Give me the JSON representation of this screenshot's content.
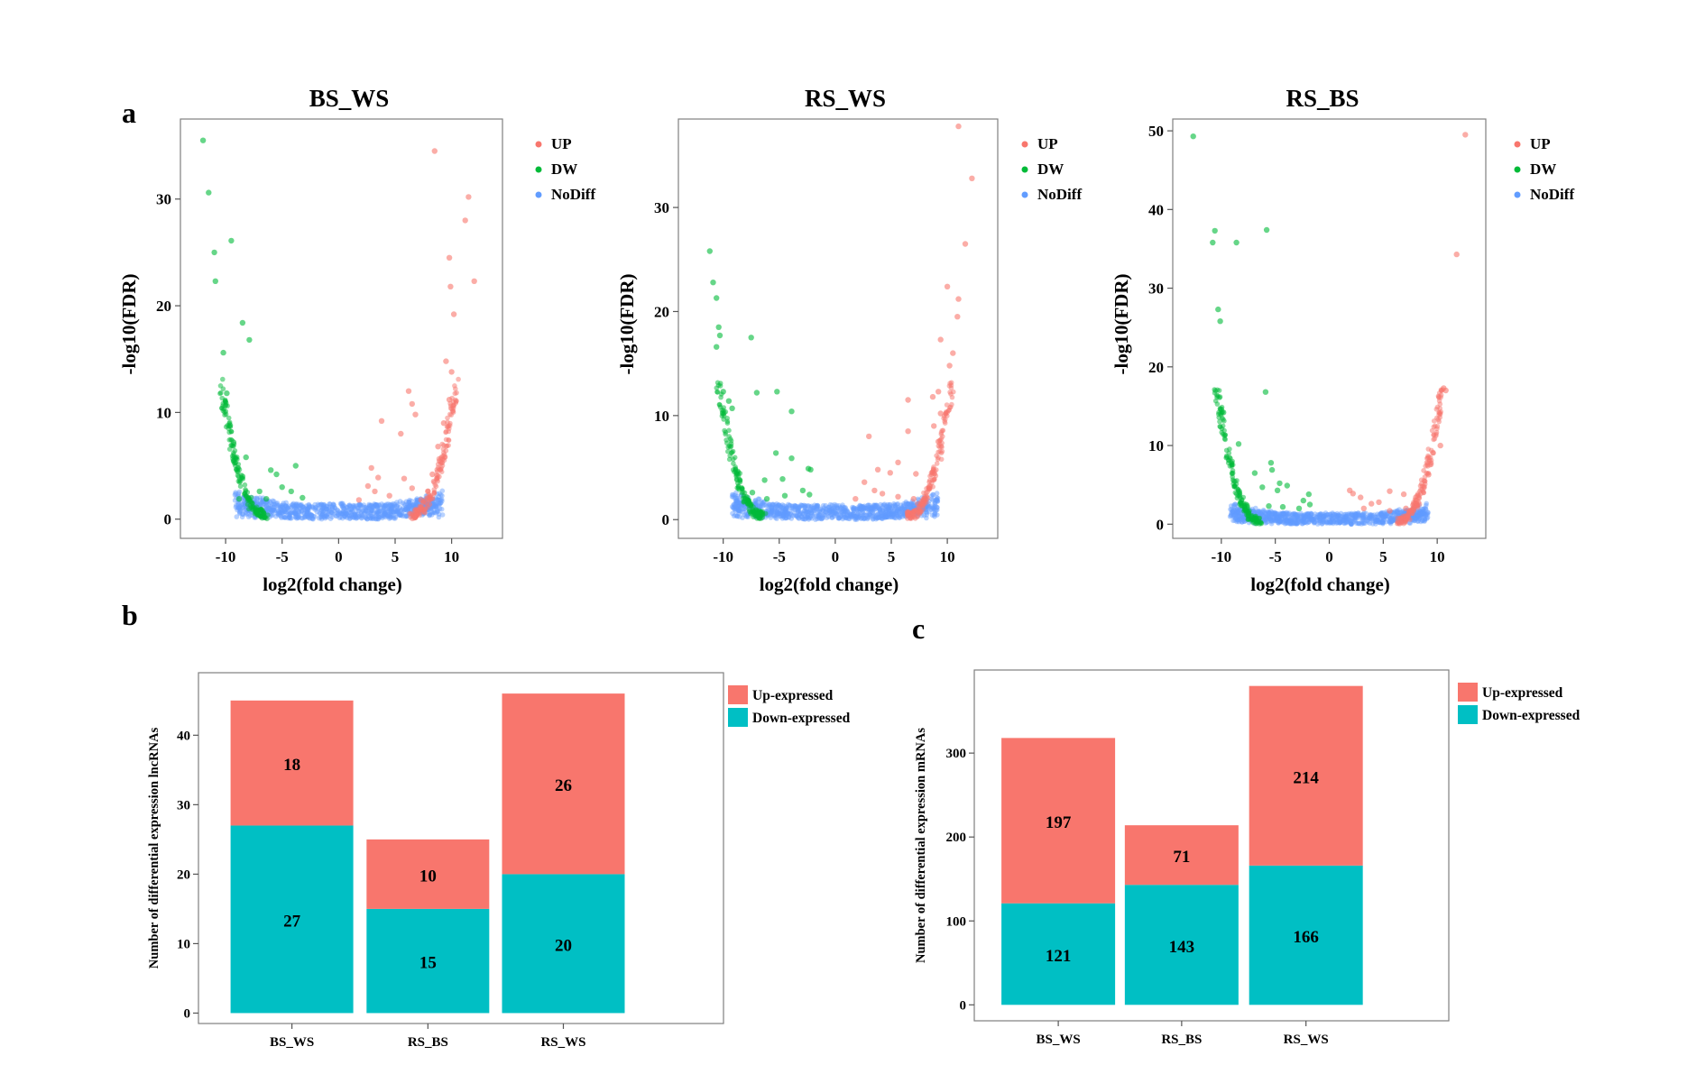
{
  "colors": {
    "up": "#f8766d",
    "dw": "#00ba38",
    "nodiff": "#619cff",
    "up_expressed": "#f8766d",
    "down_expressed": "#00bfc4"
  },
  "panel_labels": {
    "a": "a",
    "b": "b",
    "c": "c"
  },
  "volcano_legend": {
    "up": "UP",
    "dw": "DW",
    "nodiff": "NoDiff"
  },
  "bar_legend": {
    "up": "Up-expressed",
    "down": "Down-expressed"
  },
  "chart_data": [
    {
      "type": "scatter",
      "title": "BS_WS",
      "xlabel": "log2(fold change)",
      "ylabel": "-log10(FDR)",
      "xlim": [
        -14,
        14.5
      ],
      "ylim": [
        -1.8,
        37.5
      ],
      "xticks": [
        -10,
        -5,
        0,
        5,
        10
      ],
      "xtick_labels": [
        "-10",
        "-5",
        "0",
        "5",
        "10"
      ],
      "yticks": [
        0,
        10,
        20,
        30
      ],
      "ytick_labels": [
        "0",
        "10",
        "20",
        "30"
      ],
      "grid": false,
      "legend_position": "right",
      "series": [
        {
          "name": "UP",
          "points": [
            [
              8.5,
              34.5
            ],
            [
              11.5,
              30.2
            ],
            [
              11.2,
              28.0
            ],
            [
              9.8,
              24.5
            ],
            [
              12,
              22.3
            ],
            [
              9.9,
              21.8
            ],
            [
              10.2,
              19.2
            ],
            [
              9.5,
              14.8
            ],
            [
              10,
              13.8
            ],
            [
              6.2,
              12.0
            ],
            [
              9.8,
              11.2
            ],
            [
              6.5,
              10.8
            ],
            [
              6.8,
              9.8
            ],
            [
              3.8,
              9.2
            ],
            [
              9.3,
              9.0
            ],
            [
              5.5,
              8.0
            ],
            [
              8.8,
              6.8
            ],
            [
              2.9,
              4.8
            ],
            [
              3.5,
              3.9
            ],
            [
              2.6,
              3.1
            ],
            [
              8.3,
              4.2
            ],
            [
              5.8,
              3.8
            ],
            [
              4.5,
              2.2
            ],
            [
              7.9,
              2.6
            ],
            [
              1.8,
              1.8
            ],
            [
              6.5,
              2.9
            ],
            [
              3.2,
              2.6
            ],
            [
              7.3,
              1.8
            ]
          ]
        },
        {
          "name": "DW",
          "points": [
            [
              -12,
              35.5
            ],
            [
              -11.5,
              30.6
            ],
            [
              -11,
              25.0
            ],
            [
              -10.9,
              22.3
            ],
            [
              -9.5,
              26.1
            ],
            [
              -8.5,
              18.4
            ],
            [
              -7.9,
              16.8
            ],
            [
              -10.2,
              15.6
            ],
            [
              -9.9,
              11.8
            ],
            [
              -9.6,
              8.8
            ],
            [
              -9.3,
              7.2
            ],
            [
              -8.2,
              5.8
            ],
            [
              -8.5,
              4.0
            ],
            [
              -6.0,
              4.6
            ],
            [
              -5.5,
              4.2
            ],
            [
              -3.8,
              5.0
            ],
            [
              -5,
              3.0
            ],
            [
              -7.0,
              2.6
            ],
            [
              -4.2,
              2.6
            ],
            [
              -6.4,
              1.9
            ],
            [
              -3.2,
              2.0
            ],
            [
              -8.8,
              1.9
            ]
          ]
        },
        {
          "name": "NoDiff",
          "points": []
        }
      ]
    },
    {
      "type": "scatter",
      "title": "RS_WS",
      "xlabel": "log2(fold change)",
      "ylabel": "-log10(FDR)",
      "xlim": [
        -14,
        14.5
      ],
      "ylim": [
        -1.8,
        38.5
      ],
      "xticks": [
        -10,
        -5,
        0,
        5,
        10
      ],
      "xtick_labels": [
        "-10",
        "-5",
        "0",
        "5",
        "10"
      ],
      "yticks": [
        0,
        10,
        20,
        30
      ],
      "ytick_labels": [
        "0",
        "10",
        "20",
        "30"
      ],
      "grid": false,
      "legend_position": "right",
      "series": [
        {
          "name": "UP",
          "points": [
            [
              11,
              37.8
            ],
            [
              12.2,
              32.8
            ],
            [
              11.6,
              26.5
            ],
            [
              10,
              22.4
            ],
            [
              11,
              21.2
            ],
            [
              10.9,
              19.5
            ],
            [
              9.4,
              17.3
            ],
            [
              10.5,
              16.0
            ],
            [
              10.2,
              14.8
            ],
            [
              9.2,
              12.3
            ],
            [
              8.7,
              11.8
            ],
            [
              6.5,
              11.5
            ],
            [
              9.4,
              10.2
            ],
            [
              8.8,
              9.0
            ],
            [
              6.5,
              8.5
            ],
            [
              3,
              8.0
            ],
            [
              9.2,
              7.5
            ],
            [
              5.6,
              5.5
            ],
            [
              4.9,
              4.5
            ],
            [
              3.8,
              4.8
            ],
            [
              7.2,
              4.4
            ],
            [
              2.6,
              3.6
            ],
            [
              3.5,
              2.8
            ],
            [
              8.4,
              3.2
            ],
            [
              1.8,
              2.0
            ],
            [
              5.6,
              2.2
            ],
            [
              4.2,
              2.5
            ],
            [
              7,
              2.0
            ]
          ]
        },
        {
          "name": "DW",
          "points": [
            [
              -11.2,
              25.8
            ],
            [
              -10.9,
              22.8
            ],
            [
              -10.6,
              21.3
            ],
            [
              -10.4,
              18.5
            ],
            [
              -10.3,
              17.7
            ],
            [
              -10.6,
              16.6
            ],
            [
              -7.5,
              17.5
            ],
            [
              -10,
              12.3
            ],
            [
              -9.5,
              11.4
            ],
            [
              -7,
              12.2
            ],
            [
              -5.2,
              12.3
            ],
            [
              -9.2,
              10.7
            ],
            [
              -3.9,
              10.4
            ],
            [
              -5.3,
              6.4
            ],
            [
              -3.9,
              5.9
            ],
            [
              -2.4,
              4.9
            ],
            [
              -2.2,
              4.8
            ],
            [
              -6.3,
              3.8
            ],
            [
              -4.7,
              3.9
            ],
            [
              -2.9,
              2.8
            ],
            [
              -7.4,
              2.6
            ],
            [
              -4.5,
              2.3
            ],
            [
              -6.1,
              2.0
            ],
            [
              -2.3,
              2.4
            ]
          ]
        },
        {
          "name": "NoDiff",
          "points": []
        }
      ]
    },
    {
      "type": "scatter",
      "title": "RS_BS",
      "xlabel": "log2(fold change)",
      "ylabel": "-log10(FDR)",
      "xlim": [
        -14.5,
        14.5
      ],
      "ylim": [
        -1.8,
        51.5
      ],
      "xticks": [
        -10,
        -5,
        0,
        5,
        10
      ],
      "xtick_labels": [
        "-10",
        "-5",
        "0",
        "5",
        "10"
      ],
      "yticks": [
        0,
        10,
        20,
        30,
        40,
        50
      ],
      "ytick_labels": [
        "0",
        "10",
        "20",
        "30",
        "40",
        "50"
      ],
      "grid": false,
      "legend_position": "right",
      "series": [
        {
          "name": "UP",
          "points": [
            [
              12.6,
              49.5
            ],
            [
              11.8,
              34.3
            ],
            [
              10.6,
              17.3
            ],
            [
              10.8,
              17.0
            ],
            [
              10.3,
              10.0
            ],
            [
              9.6,
              9.1
            ],
            [
              9.2,
              6.3
            ],
            [
              5.6,
              4.2
            ],
            [
              6.9,
              3.8
            ],
            [
              2.9,
              3.4
            ],
            [
              3.9,
              2.6
            ],
            [
              1.9,
              4.3
            ],
            [
              2.2,
              3.9
            ],
            [
              4.6,
              2.8
            ],
            [
              8.1,
              3.0
            ],
            [
              7.1,
              2.0
            ],
            [
              3.2,
              2.0
            ],
            [
              5.6,
              1.7
            ]
          ]
        },
        {
          "name": "DW",
          "points": [
            [
              -12.6,
              49.3
            ],
            [
              -10.6,
              37.3
            ],
            [
              -10.8,
              35.8
            ],
            [
              -5.8,
              37.4
            ],
            [
              -8.6,
              35.8
            ],
            [
              -10.3,
              27.3
            ],
            [
              -10.1,
              25.8
            ],
            [
              -5.9,
              16.8
            ],
            [
              -10,
              14.6
            ],
            [
              -9.8,
              14.2
            ],
            [
              -8.4,
              10.2
            ],
            [
              -5.4,
              7.8
            ],
            [
              -5.3,
              6.9
            ],
            [
              -6.9,
              6.5
            ],
            [
              -4.6,
              5.2
            ],
            [
              -6.2,
              4.7
            ],
            [
              -3.9,
              4.9
            ],
            [
              -4.8,
              4.3
            ],
            [
              -1.9,
              3.8
            ],
            [
              -2.4,
              3.0
            ],
            [
              -7.6,
              2.2
            ],
            [
              -4.3,
              2.2
            ],
            [
              -5.6,
              2.3
            ],
            [
              -2.8,
              2.0
            ],
            [
              -1.8,
              2.5
            ]
          ]
        },
        {
          "name": "NoDiff",
          "points": []
        }
      ]
    },
    {
      "type": "bar",
      "stacked": true,
      "ylabel": "Number of differential expression lncRNAs",
      "xlabel": "",
      "categories": [
        "BS_WS",
        "RS_BS",
        "RS_WS"
      ],
      "ylim": [
        -1.5,
        49
      ],
      "yticks": [
        0,
        10,
        20,
        30,
        40
      ],
      "ytick_labels": [
        "0",
        "10",
        "20",
        "30",
        "40"
      ],
      "grid": false,
      "legend_position": "top-right",
      "series": [
        {
          "name": "Down-expressed",
          "values": [
            27,
            15,
            20
          ]
        },
        {
          "name": "Up-expressed",
          "values": [
            18,
            10,
            26
          ]
        }
      ]
    },
    {
      "type": "bar",
      "stacked": true,
      "ylabel": "Number of differential expression mRNAs",
      "xlabel": "",
      "categories": [
        "BS_WS",
        "RS_BS",
        "RS_WS"
      ],
      "ylim": [
        -19,
        399
      ],
      "yticks": [
        0,
        100,
        200,
        300
      ],
      "ytick_labels": [
        "0",
        "100",
        "200",
        "300"
      ],
      "grid": false,
      "legend_position": "top-right",
      "series": [
        {
          "name": "Down-expressed",
          "values": [
            121,
            143,
            166
          ]
        },
        {
          "name": "Up-expressed",
          "values": [
            197,
            71,
            214
          ]
        }
      ]
    }
  ]
}
